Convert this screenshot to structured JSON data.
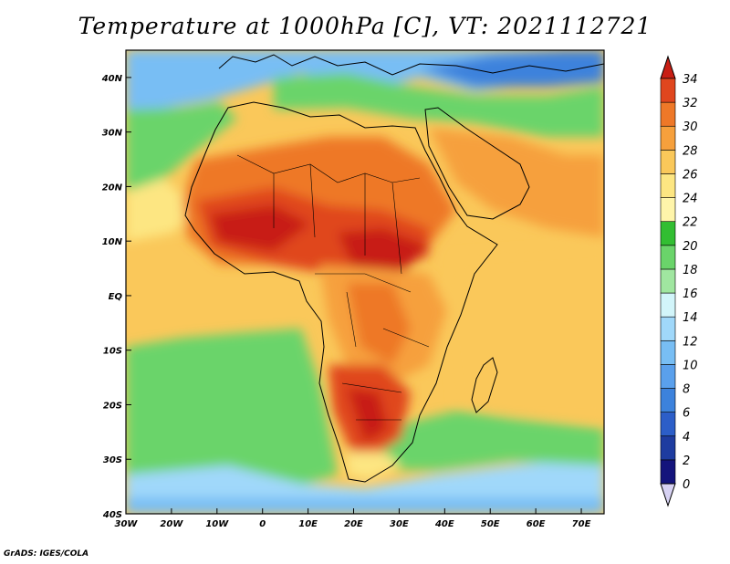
{
  "title": "Temperature at 1000hPa [C], VT: 2021112721",
  "credit": "GrADS: IGES/COLA",
  "colors": {
    "ocean_cool": "#6ad46a",
    "land_hot": "#e8641e",
    "border": "#000000"
  },
  "chart_data": {
    "type": "heatmap",
    "variable": "Temperature at 1000hPa",
    "units": "C",
    "valid_time": "2021112721",
    "lon_range": [
      -30,
      75
    ],
    "lat_range": [
      -40,
      45
    ],
    "x_tick_labels": [
      "30W",
      "20W",
      "10W",
      "0",
      "10E",
      "20E",
      "30E",
      "40E",
      "50E",
      "60E",
      "70E"
    ],
    "x_tick_values": [
      -30,
      -20,
      -10,
      0,
      10,
      20,
      30,
      40,
      50,
      60,
      70
    ],
    "y_tick_labels": [
      "40N",
      "30N",
      "20N",
      "10N",
      "EQ",
      "10S",
      "20S",
      "30S",
      "40S"
    ],
    "y_tick_values": [
      40,
      30,
      20,
      10,
      0,
      -10,
      -20,
      -30,
      -40
    ],
    "colorbar": {
      "levels": [
        "0",
        "2",
        "4",
        "6",
        "8",
        "10",
        "12",
        "14",
        "16",
        "18",
        "20",
        "22",
        "24",
        "26",
        "28",
        "30",
        "32",
        "34"
      ],
      "colors": [
        "#d7d2f3",
        "#14147c",
        "#1e3ca0",
        "#2c5ec8",
        "#3c82dc",
        "#5aa0ec",
        "#78bef4",
        "#a0d8fa",
        "#d2f5fa",
        "#a0e6a0",
        "#6ad46a",
        "#32be32",
        "#fff5aa",
        "#fde682",
        "#fac85a",
        "#f6a03c",
        "#ee7828",
        "#e0461e",
        "#c81e14"
      ]
    }
  }
}
